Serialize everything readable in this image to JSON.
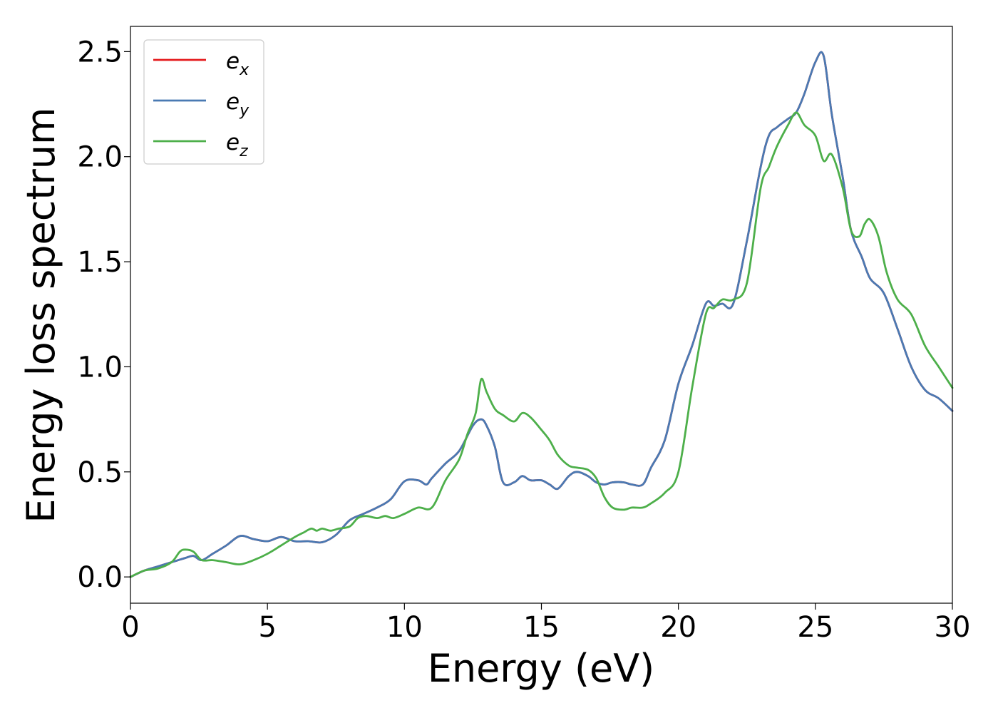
{
  "chart_data": {
    "type": "line",
    "title": "",
    "xlabel": "Energy (eV)",
    "ylabel": "Energy loss spectrum",
    "xlim": [
      0,
      30
    ],
    "ylim": [
      -0.125,
      2.62
    ],
    "xticks": [
      0,
      5,
      10,
      15,
      20,
      25,
      30
    ],
    "yticks": [
      0.0,
      0.5,
      1.0,
      1.5,
      2.0,
      2.5
    ],
    "xtick_labels": [
      "0",
      "5",
      "10",
      "15",
      "20",
      "25",
      "30"
    ],
    "ytick_labels": [
      "0.0",
      "0.5",
      "1.0",
      "1.5",
      "2.0",
      "2.5"
    ],
    "grid": false,
    "legend_position": "top-left",
    "series": [
      {
        "name": "e",
        "subscript": "x",
        "color": "#e41a1c",
        "x": [
          0,
          0.5,
          1,
          1.5,
          2,
          2.3,
          2.6,
          3,
          3.5,
          4,
          4.5,
          5,
          5.5,
          6,
          6.5,
          7,
          7.5,
          8,
          8.5,
          9,
          9.5,
          10,
          10.5,
          10.8,
          11,
          11.5,
          12,
          12.5,
          12.8,
          13,
          13.3,
          13.6,
          14,
          14.3,
          14.6,
          15,
          15.3,
          15.6,
          16,
          16.3,
          16.7,
          17,
          17.3,
          17.6,
          18,
          18.3,
          18.7,
          19,
          19.5,
          20,
          20.5,
          21,
          21.3,
          21.6,
          22,
          22.5,
          23,
          23.3,
          23.6,
          24,
          24.3,
          24.6,
          25,
          25.3,
          25.6,
          26,
          26.3,
          26.7,
          27,
          27.5,
          28,
          28.5,
          29,
          29.5,
          30
        ],
        "values": [
          0,
          0.03,
          0.05,
          0.07,
          0.09,
          0.1,
          0.08,
          0.11,
          0.15,
          0.195,
          0.18,
          0.17,
          0.19,
          0.17,
          0.17,
          0.165,
          0.2,
          0.27,
          0.3,
          0.33,
          0.37,
          0.455,
          0.46,
          0.44,
          0.47,
          0.54,
          0.6,
          0.72,
          0.75,
          0.72,
          0.62,
          0.45,
          0.45,
          0.48,
          0.46,
          0.46,
          0.44,
          0.42,
          0.48,
          0.5,
          0.48,
          0.45,
          0.44,
          0.45,
          0.45,
          0.44,
          0.44,
          0.52,
          0.65,
          0.92,
          1.1,
          1.3,
          1.29,
          1.3,
          1.3,
          1.6,
          1.95,
          2.1,
          2.14,
          2.18,
          2.21,
          2.3,
          2.45,
          2.48,
          2.2,
          1.9,
          1.65,
          1.52,
          1.42,
          1.35,
          1.18,
          1.0,
          0.89,
          0.85,
          0.79
        ]
      },
      {
        "name": "e",
        "subscript": "y",
        "color": "#4a7ab3",
        "x": [
          0,
          0.5,
          1,
          1.5,
          2,
          2.3,
          2.6,
          3,
          3.5,
          4,
          4.5,
          5,
          5.5,
          6,
          6.5,
          7,
          7.5,
          8,
          8.5,
          9,
          9.5,
          10,
          10.5,
          10.8,
          11,
          11.5,
          12,
          12.5,
          12.8,
          13,
          13.3,
          13.6,
          14,
          14.3,
          14.6,
          15,
          15.3,
          15.6,
          16,
          16.3,
          16.7,
          17,
          17.3,
          17.6,
          18,
          18.3,
          18.7,
          19,
          19.5,
          20,
          20.5,
          21,
          21.3,
          21.6,
          22,
          22.5,
          23,
          23.3,
          23.6,
          24,
          24.3,
          24.6,
          25,
          25.3,
          25.6,
          26,
          26.3,
          26.7,
          27,
          27.5,
          28,
          28.5,
          29,
          29.5,
          30
        ],
        "values": [
          0,
          0.03,
          0.05,
          0.07,
          0.09,
          0.1,
          0.08,
          0.11,
          0.15,
          0.195,
          0.18,
          0.17,
          0.19,
          0.17,
          0.17,
          0.165,
          0.2,
          0.27,
          0.3,
          0.33,
          0.37,
          0.455,
          0.46,
          0.44,
          0.47,
          0.54,
          0.6,
          0.72,
          0.75,
          0.72,
          0.62,
          0.45,
          0.45,
          0.48,
          0.46,
          0.46,
          0.44,
          0.42,
          0.48,
          0.5,
          0.48,
          0.45,
          0.44,
          0.45,
          0.45,
          0.44,
          0.44,
          0.52,
          0.65,
          0.92,
          1.1,
          1.3,
          1.29,
          1.3,
          1.3,
          1.6,
          1.95,
          2.1,
          2.14,
          2.18,
          2.21,
          2.3,
          2.45,
          2.48,
          2.2,
          1.9,
          1.65,
          1.52,
          1.42,
          1.35,
          1.18,
          1.0,
          0.89,
          0.85,
          0.79
        ]
      },
      {
        "name": "e",
        "subscript": "z",
        "color": "#4daf4a",
        "x": [
          0,
          0.5,
          1,
          1.5,
          1.8,
          2,
          2.3,
          2.6,
          3,
          3.5,
          4,
          4.5,
          5,
          5.5,
          6,
          6.3,
          6.6,
          6.8,
          7,
          7.3,
          7.6,
          8,
          8.3,
          8.6,
          9,
          9.3,
          9.6,
          10,
          10.5,
          11,
          11.5,
          12,
          12.3,
          12.6,
          12.8,
          13,
          13.3,
          13.6,
          14,
          14.3,
          14.6,
          15,
          15.3,
          15.6,
          16,
          16.3,
          16.7,
          17,
          17.3,
          17.6,
          18,
          18.3,
          18.7,
          19,
          19.5,
          20,
          20.5,
          21,
          21.3,
          21.6,
          22,
          22.5,
          23,
          23.3,
          23.6,
          24,
          24.3,
          24.6,
          25,
          25.3,
          25.6,
          26,
          26.3,
          26.6,
          26.8,
          27,
          27.3,
          27.6,
          28,
          28.5,
          29,
          29.5,
          30
        ],
        "values": [
          0,
          0.03,
          0.04,
          0.07,
          0.12,
          0.13,
          0.12,
          0.08,
          0.08,
          0.07,
          0.06,
          0.08,
          0.11,
          0.15,
          0.19,
          0.21,
          0.23,
          0.22,
          0.23,
          0.22,
          0.23,
          0.24,
          0.28,
          0.29,
          0.28,
          0.29,
          0.28,
          0.3,
          0.33,
          0.33,
          0.46,
          0.56,
          0.68,
          0.78,
          0.94,
          0.88,
          0.8,
          0.77,
          0.74,
          0.78,
          0.76,
          0.7,
          0.65,
          0.58,
          0.53,
          0.52,
          0.51,
          0.47,
          0.38,
          0.33,
          0.32,
          0.33,
          0.33,
          0.35,
          0.4,
          0.5,
          0.9,
          1.25,
          1.28,
          1.32,
          1.32,
          1.4,
          1.85,
          1.95,
          2.05,
          2.15,
          2.21,
          2.15,
          2.1,
          1.98,
          2.01,
          1.85,
          1.65,
          1.62,
          1.68,
          1.7,
          1.62,
          1.45,
          1.32,
          1.25,
          1.1,
          1.0,
          0.9
        ]
      }
    ]
  }
}
